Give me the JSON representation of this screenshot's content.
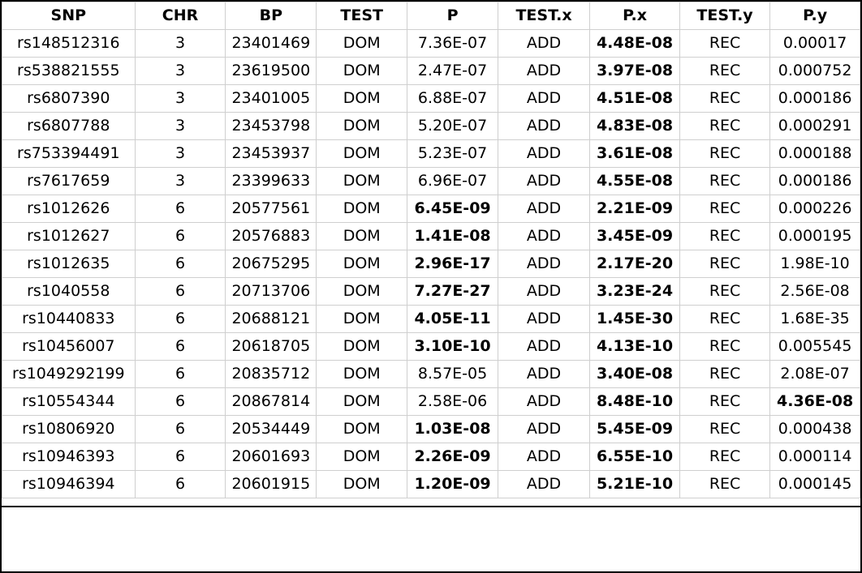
{
  "table": {
    "columns": [
      "SNP",
      "CHR",
      "BP",
      "TEST",
      "P",
      "TEST.x",
      "P.x",
      "TEST.y",
      "P.y"
    ],
    "rows": [
      {
        "cells": [
          "rs148512316",
          "3",
          "23401469",
          "DOM",
          "7.36E-07",
          "ADD",
          "4.48E-08",
          "REC",
          "0.00017"
        ],
        "bold": [
          false,
          false,
          false,
          false,
          false,
          false,
          true,
          false,
          false
        ]
      },
      {
        "cells": [
          "rs538821555",
          "3",
          "23619500",
          "DOM",
          "2.47E-07",
          "ADD",
          "3.97E-08",
          "REC",
          "0.000752"
        ],
        "bold": [
          false,
          false,
          false,
          false,
          false,
          false,
          true,
          false,
          false
        ]
      },
      {
        "cells": [
          "rs6807390",
          "3",
          "23401005",
          "DOM",
          "6.88E-07",
          "ADD",
          "4.51E-08",
          "REC",
          "0.000186"
        ],
        "bold": [
          false,
          false,
          false,
          false,
          false,
          false,
          true,
          false,
          false
        ]
      },
      {
        "cells": [
          "rs6807788",
          "3",
          "23453798",
          "DOM",
          "5.20E-07",
          "ADD",
          "4.83E-08",
          "REC",
          "0.000291"
        ],
        "bold": [
          false,
          false,
          false,
          false,
          false,
          false,
          true,
          false,
          false
        ]
      },
      {
        "cells": [
          "rs753394491",
          "3",
          "23453937",
          "DOM",
          "5.23E-07",
          "ADD",
          "3.61E-08",
          "REC",
          "0.000188"
        ],
        "bold": [
          false,
          false,
          false,
          false,
          false,
          false,
          true,
          false,
          false
        ]
      },
      {
        "cells": [
          "rs7617659",
          "3",
          "23399633",
          "DOM",
          "6.96E-07",
          "ADD",
          "4.55E-08",
          "REC",
          "0.000186"
        ],
        "bold": [
          false,
          false,
          false,
          false,
          false,
          false,
          true,
          false,
          false
        ]
      },
      {
        "cells": [
          "rs1012626",
          "6",
          "20577561",
          "DOM",
          "6.45E-09",
          "ADD",
          "2.21E-09",
          "REC",
          "0.000226"
        ],
        "bold": [
          false,
          false,
          false,
          false,
          true,
          false,
          true,
          false,
          false
        ]
      },
      {
        "cells": [
          "rs1012627",
          "6",
          "20576883",
          "DOM",
          "1.41E-08",
          "ADD",
          "3.45E-09",
          "REC",
          "0.000195"
        ],
        "bold": [
          false,
          false,
          false,
          false,
          true,
          false,
          true,
          false,
          false
        ]
      },
      {
        "cells": [
          "rs1012635",
          "6",
          "20675295",
          "DOM",
          "2.96E-17",
          "ADD",
          "2.17E-20",
          "REC",
          "1.98E-10"
        ],
        "bold": [
          false,
          false,
          false,
          false,
          true,
          false,
          true,
          false,
          false
        ]
      },
      {
        "cells": [
          "rs1040558",
          "6",
          "20713706",
          "DOM",
          "7.27E-27",
          "ADD",
          "3.23E-24",
          "REC",
          "2.56E-08"
        ],
        "bold": [
          false,
          false,
          false,
          false,
          true,
          false,
          true,
          false,
          false
        ]
      },
      {
        "cells": [
          "rs10440833",
          "6",
          "20688121",
          "DOM",
          "4.05E-11",
          "ADD",
          "1.45E-30",
          "REC",
          "1.68E-35"
        ],
        "bold": [
          false,
          false,
          false,
          false,
          true,
          false,
          true,
          false,
          false
        ]
      },
      {
        "cells": [
          "rs10456007",
          "6",
          "20618705",
          "DOM",
          "3.10E-10",
          "ADD",
          "4.13E-10",
          "REC",
          "0.005545"
        ],
        "bold": [
          false,
          false,
          false,
          false,
          true,
          false,
          true,
          false,
          false
        ]
      },
      {
        "cells": [
          "rs1049292199",
          "6",
          "20835712",
          "DOM",
          "8.57E-05",
          "ADD",
          "3.40E-08",
          "REC",
          "2.08E-07"
        ],
        "bold": [
          false,
          false,
          false,
          false,
          false,
          false,
          true,
          false,
          false
        ]
      },
      {
        "cells": [
          "rs10554344",
          "6",
          "20867814",
          "DOM",
          "2.58E-06",
          "ADD",
          "8.48E-10",
          "REC",
          "4.36E-08"
        ],
        "bold": [
          false,
          false,
          false,
          false,
          false,
          false,
          true,
          false,
          true
        ]
      },
      {
        "cells": [
          "rs10806920",
          "6",
          "20534449",
          "DOM",
          "1.03E-08",
          "ADD",
          "5.45E-09",
          "REC",
          "0.000438"
        ],
        "bold": [
          false,
          false,
          false,
          false,
          true,
          false,
          true,
          false,
          false
        ]
      },
      {
        "cells": [
          "rs10946393",
          "6",
          "20601693",
          "DOM",
          "2.26E-09",
          "ADD",
          "6.55E-10",
          "REC",
          "0.000114"
        ],
        "bold": [
          false,
          false,
          false,
          false,
          true,
          false,
          true,
          false,
          false
        ]
      },
      {
        "cells": [
          "rs10946394",
          "6",
          "20601915",
          "DOM",
          "1.20E-09",
          "ADD",
          "5.21E-10",
          "REC",
          "0.000145"
        ],
        "bold": [
          false,
          false,
          false,
          false,
          true,
          false,
          true,
          false,
          false
        ]
      }
    ]
  }
}
